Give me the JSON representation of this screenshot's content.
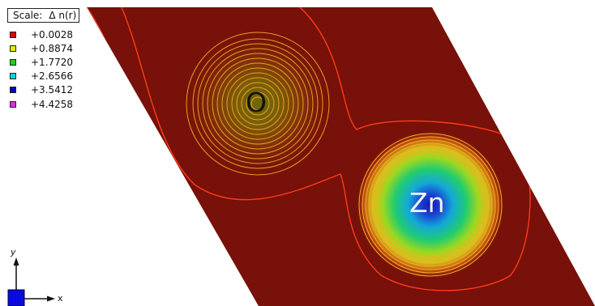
{
  "scale": {
    "label": "Scale:",
    "quantity": "Δ n(r)"
  },
  "legend": [
    {
      "value": "+0.0028",
      "color": "#e00000"
    },
    {
      "value": "+0.8874",
      "color": "#e8e800"
    },
    {
      "value": "+1.7720",
      "color": "#20d020"
    },
    {
      "value": "+2.6566",
      "color": "#00d8d8"
    },
    {
      "value": "+3.5412",
      "color": "#0000c0"
    },
    {
      "value": "+4.4258",
      "color": "#d830d8"
    }
  ],
  "atoms": {
    "o": "O",
    "zn": "Zn"
  },
  "axes": {
    "y": "y",
    "x": "x"
  },
  "colors": {
    "background": "#771109",
    "contour": "#ff3b1a"
  }
}
